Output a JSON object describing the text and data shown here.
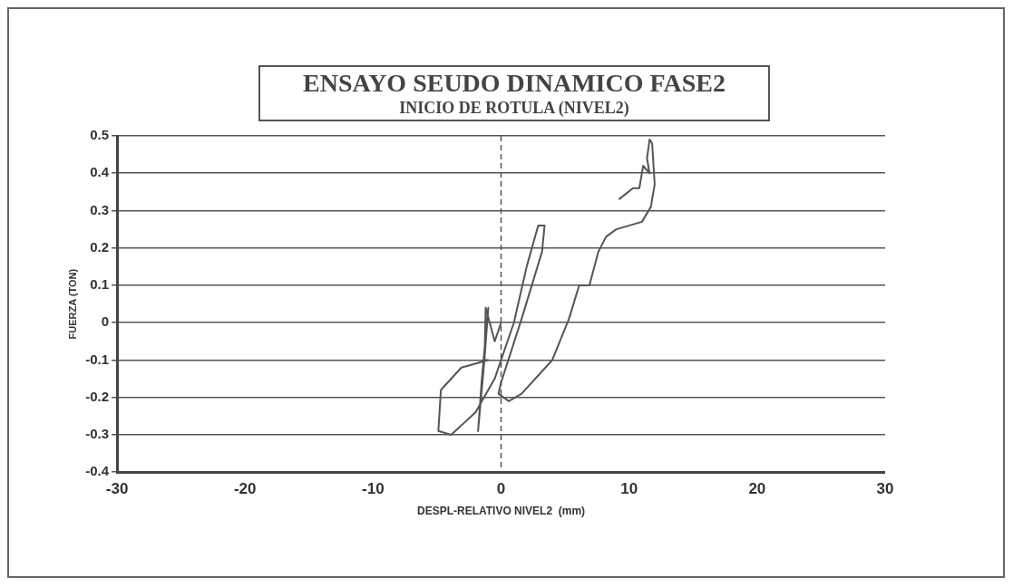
{
  "chart_data": {
    "type": "line",
    "title": "ENSAYO SEUDO DINAMICO FASE2",
    "subtitle": "INICIO DE ROTULA (NIVEL2)",
    "xlabel": "DESPL-RELATIVO NIVEL2  (mm)",
    "ylabel": "FUERZA (TON)",
    "series": [
      {
        "color": "#555555",
        "x": [
          0,
          -0.5,
          -1.2,
          -1.3,
          -1.0,
          -1.5,
          -1.8,
          -1.3,
          -1.0,
          -3.1,
          -4.7,
          -4.9,
          -3.9,
          -2.0,
          -0.5,
          1.0,
          2.0,
          2.9,
          3.4,
          3.2,
          1.6,
          0.0,
          -0.2,
          0.6,
          1.6,
          4.0,
          5.3,
          6.1,
          6.9,
          7.6,
          8.2,
          9.0,
          11.0,
          11.7,
          12.0,
          11.8,
          11.6,
          11.4,
          11.6,
          11.1,
          10.8,
          10.3,
          9.2
        ],
        "values": [
          0,
          -0.05,
          0.04,
          -0.1,
          0.04,
          -0.15,
          -0.29,
          -0.1,
          -0.1,
          -0.12,
          -0.18,
          -0.29,
          -0.3,
          -0.24,
          -0.15,
          0.0,
          0.15,
          0.26,
          0.26,
          0.19,
          0.01,
          -0.16,
          -0.19,
          -0.21,
          -0.19,
          -0.1,
          0.01,
          0.1,
          0.1,
          0.19,
          0.23,
          0.25,
          0.27,
          0.31,
          0.37,
          0.48,
          0.49,
          0.44,
          0.4,
          0.42,
          0.36,
          0.36,
          0.33
        ]
      }
    ],
    "xlim": [
      -30,
      30
    ],
    "xticks": [
      -30,
      -20,
      -10,
      0,
      10,
      20,
      30
    ],
    "ylim": [
      -0.4,
      0.5
    ],
    "yticks": [
      -0.4,
      -0.3,
      -0.2,
      -0.1,
      0,
      0.1,
      0.2,
      0.3,
      0.4,
      0.5
    ],
    "grid": "y",
    "ref_lines": [
      {
        "axis": "x",
        "value": 0
      }
    ],
    "legend": false,
    "marker": "none",
    "line_style": "solid"
  }
}
